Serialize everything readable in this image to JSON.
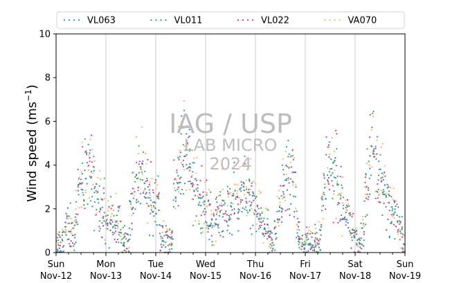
{
  "chart_data": {
    "type": "scatter",
    "ylabel": "Wind speed (ms",
    "ylabel_exponent": "−1",
    "ylabel_close": ")",
    "ylim": [
      0,
      10
    ],
    "yticks": [
      "0",
      "2",
      "4",
      "6",
      "8",
      "10"
    ],
    "xlim": [
      "2024-11-12",
      "2024-11-19"
    ],
    "xticks": [
      {
        "day": "Sun",
        "date": "Nov-12"
      },
      {
        "day": "Mon",
        "date": "Nov-13"
      },
      {
        "day": "Tue",
        "date": "Nov-14"
      },
      {
        "day": "Wed",
        "date": "Nov-15"
      },
      {
        "day": "Thu",
        "date": "Nov-16"
      },
      {
        "day": "Fri",
        "date": "Nov-17"
      },
      {
        "day": "Sat",
        "date": "Nov-18"
      },
      {
        "day": "Sun",
        "date": "Nov-19"
      }
    ],
    "grid": "vertical day lines",
    "legend_position": "top",
    "series": [
      {
        "name": "VL063",
        "color": "#2ca25f",
        "hourly_mean": [
          0.4,
          0.3,
          0.6,
          1.1,
          1.3,
          1.0,
          0.8,
          1.5,
          2.6,
          3.3,
          3.6,
          4.2,
          3.9,
          3.2,
          2.8,
          2.5,
          2.0,
          1.8,
          1.6,
          1.5,
          1.7,
          1.4,
          1.3,
          1.2,
          0.6,
          0.4,
          0.5,
          1.9,
          2.6,
          3.2,
          3.6,
          3.8,
          3.4,
          2.8,
          2.6,
          2.2,
          2.4,
          2.5,
          0.6,
          0.5,
          0.7,
          0.4,
          0.6,
          2.6,
          3.2,
          4.0,
          4.7,
          4.5,
          4.3,
          3.8,
          3.3,
          3.0,
          2.6,
          2.4,
          2.2,
          2.1,
          1.5,
          1.2,
          1.6,
          1.9,
          2.2,
          1.8,
          2.1,
          2.0,
          2.3,
          2.5,
          2.6,
          2.8,
          3.0,
          3.1,
          2.8,
          2.5,
          2.3,
          2.1,
          2.0,
          1.8,
          1.5,
          1.2,
          0.5,
          0.3,
          0.8,
          1.9,
          2.6,
          3.3,
          3.6,
          3.8,
          3.5,
          2.8,
          1.3,
          0.6,
          0.4,
          0.5,
          0.6,
          0.4,
          0.3,
          0.6,
          0.4,
          1.8,
          3.2,
          3.6,
          3.7,
          3.5,
          3.8,
          2.8,
          2.4,
          2.1,
          1.7,
          1.4,
          1.1,
          0.8,
          0.6,
          0.5,
          0.9,
          2.5,
          3.6,
          4.2,
          4.5,
          4.1,
          3.8,
          3.2,
          2.8,
          2.4,
          2.1,
          1.8,
          1.6,
          1.5,
          0.9,
          0.4
        ]
      },
      {
        "name": "VL011",
        "color": "#2b8cbe",
        "hourly_mean": [
          0.3,
          0.2,
          0.5,
          1.0,
          1.2,
          0.9,
          0.7,
          1.4,
          2.4,
          3.1,
          3.4,
          4.0,
          3.7,
          3.0,
          2.6,
          2.3,
          1.9,
          1.7,
          1.5,
          1.4,
          1.6,
          1.3,
          1.2,
          1.1,
          0.5,
          0.3,
          0.4,
          1.8,
          2.4,
          3.0,
          3.4,
          3.6,
          3.2,
          2.6,
          2.4,
          2.0,
          2.2,
          2.3,
          0.5,
          0.4,
          0.6,
          0.3,
          0.5,
          2.4,
          3.0,
          3.8,
          4.5,
          4.3,
          4.1,
          3.6,
          3.1,
          2.8,
          2.4,
          2.2,
          2.0,
          1.9,
          1.4,
          1.1,
          1.5,
          1.8,
          2.0,
          1.7,
          1.9,
          1.8,
          2.1,
          2.3,
          2.4,
          2.6,
          2.8,
          2.9,
          2.6,
          2.3,
          2.1,
          1.9,
          1.8,
          1.6,
          1.4,
          1.1,
          0.4,
          0.2,
          0.7,
          1.8,
          2.4,
          3.1,
          3.4,
          3.6,
          3.3,
          2.6,
          1.2,
          0.5,
          0.3,
          0.4,
          0.5,
          0.3,
          0.2,
          0.5,
          0.3,
          1.7,
          3.0,
          3.4,
          3.5,
          3.3,
          3.6,
          2.6,
          2.2,
          1.9,
          1.6,
          1.3,
          1.0,
          0.7,
          0.5,
          0.4,
          0.8,
          2.3,
          3.4,
          4.0,
          4.3,
          3.9,
          3.6,
          3.0,
          2.6,
          2.2,
          1.9,
          1.7,
          1.5,
          1.4,
          0.8,
          0.3
        ]
      },
      {
        "name": "VL022",
        "color": "#c23b8e",
        "hourly_mean": [
          0.4,
          0.3,
          0.6,
          1.0,
          1.2,
          0.9,
          0.8,
          1.4,
          2.5,
          3.2,
          3.5,
          4.1,
          3.8,
          3.1,
          2.7,
          2.4,
          1.9,
          1.7,
          1.5,
          1.4,
          1.6,
          1.3,
          1.2,
          1.1,
          0.6,
          0.4,
          0.5,
          1.8,
          2.5,
          3.1,
          3.5,
          3.7,
          3.3,
          2.7,
          2.5,
          2.1,
          2.3,
          2.4,
          0.6,
          0.5,
          0.7,
          0.4,
          0.6,
          2.5,
          3.1,
          3.9,
          4.6,
          4.4,
          4.2,
          3.7,
          3.2,
          2.9,
          2.5,
          2.3,
          2.1,
          2.0,
          1.5,
          1.2,
          1.6,
          1.9,
          2.1,
          1.8,
          2.0,
          1.9,
          2.2,
          2.4,
          2.5,
          2.7,
          2.9,
          3.0,
          2.7,
          2.4,
          2.2,
          2.0,
          1.9,
          1.7,
          1.5,
          1.2,
          0.5,
          0.3,
          0.8,
          1.8,
          2.5,
          3.2,
          3.5,
          3.7,
          3.4,
          2.7,
          1.3,
          0.6,
          0.4,
          0.5,
          0.6,
          0.4,
          0.3,
          0.6,
          0.4,
          1.8,
          3.1,
          3.5,
          3.6,
          3.4,
          3.7,
          2.7,
          2.3,
          2.0,
          1.7,
          1.4,
          1.1,
          0.8,
          0.6,
          0.5,
          0.9,
          2.4,
          3.5,
          4.1,
          4.4,
          4.0,
          3.7,
          3.1,
          2.7,
          2.3,
          2.0,
          1.8,
          1.6,
          1.5,
          0.9,
          0.4
        ]
      },
      {
        "name": "VA070",
        "color": "#fdae61",
        "hourly_mean": [
          0.5,
          0.4,
          0.7,
          1.2,
          1.4,
          1.1,
          0.9,
          1.6,
          2.8,
          3.5,
          3.8,
          4.4,
          4.1,
          3.4,
          3.0,
          2.7,
          2.2,
          1.9,
          1.7,
          1.6,
          1.8,
          1.5,
          1.4,
          1.3,
          0.7,
          0.5,
          0.6,
          2.0,
          2.8,
          3.4,
          3.8,
          4.0,
          3.6,
          3.0,
          2.8,
          2.4,
          2.6,
          2.7,
          0.7,
          0.6,
          0.8,
          0.5,
          0.7,
          2.8,
          3.4,
          4.2,
          5.0,
          4.8,
          4.5,
          4.0,
          3.5,
          3.2,
          2.8,
          2.6,
          2.4,
          2.3,
          1.7,
          1.4,
          1.8,
          2.1,
          2.4,
          2.0,
          2.3,
          2.2,
          2.5,
          2.7,
          2.8,
          3.0,
          3.2,
          3.3,
          3.0,
          2.7,
          2.5,
          2.3,
          2.2,
          2.0,
          1.7,
          1.4,
          0.6,
          0.4,
          0.9,
          2.1,
          2.8,
          3.5,
          3.8,
          4.1,
          3.7,
          3.0,
          1.5,
          0.7,
          0.5,
          0.6,
          0.7,
          0.5,
          0.4,
          0.7,
          0.5,
          2.0,
          3.4,
          3.8,
          3.9,
          3.7,
          4.0,
          3.0,
          2.6,
          2.3,
          1.9,
          1.6,
          1.3,
          1.0,
          0.7,
          0.6,
          1.1,
          2.7,
          3.8,
          4.6,
          4.9,
          4.4,
          4.0,
          3.4,
          3.0,
          2.6,
          2.3,
          2.0,
          1.8,
          1.7,
          1.1,
          0.5
        ]
      }
    ]
  },
  "watermark": {
    "line1": "IAG / USP",
    "line2": "LAB MICRO",
    "line3": "2024"
  }
}
